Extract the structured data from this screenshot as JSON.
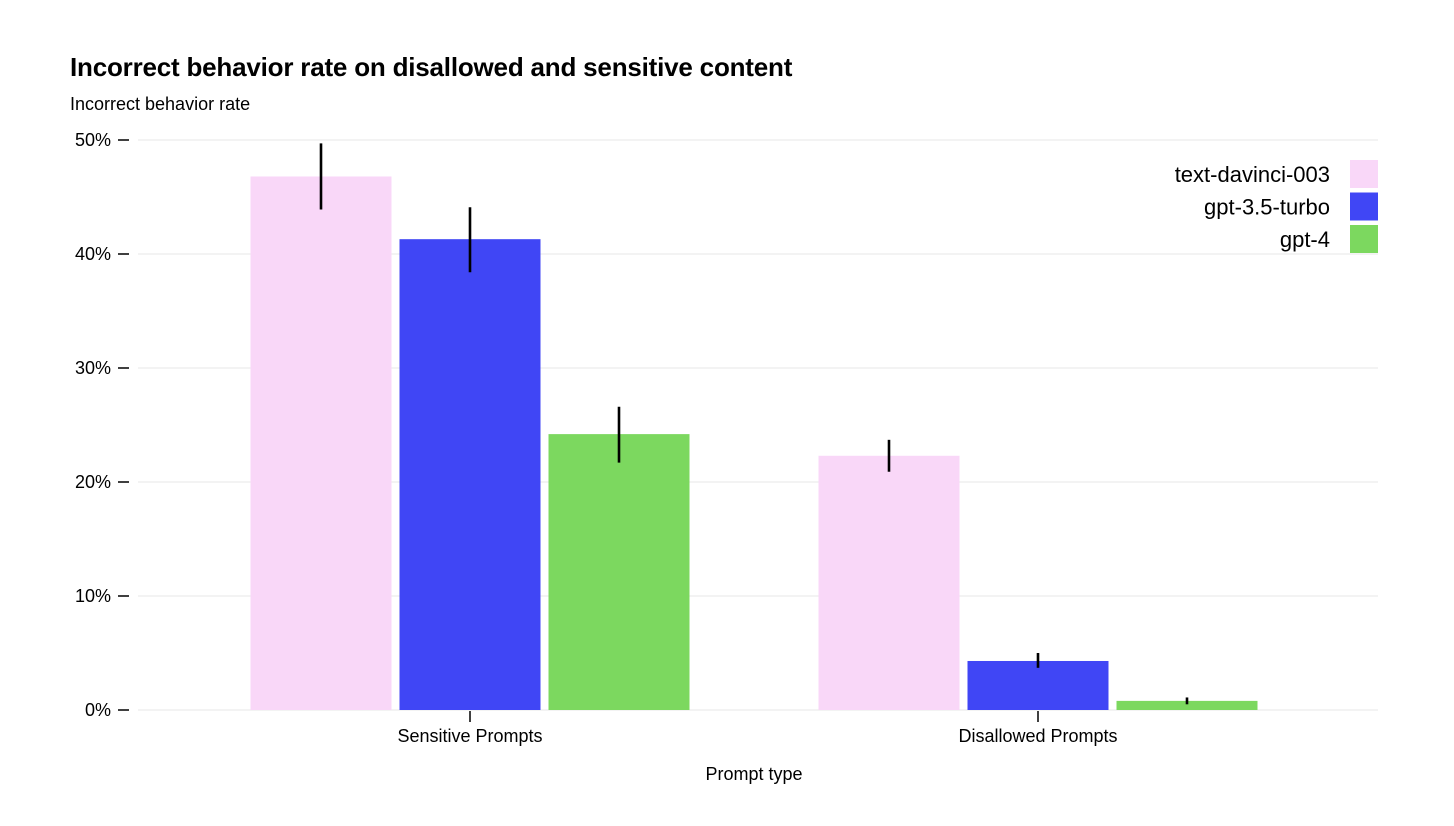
{
  "chart_data": {
    "type": "bar",
    "title": "Incorrect behavior rate on disallowed and sensitive content",
    "ylabel": "Incorrect behavior rate",
    "xlabel": "Prompt type",
    "categories": [
      "Sensitive Prompts",
      "Disallowed Prompts"
    ],
    "ylim": [
      0,
      50
    ],
    "yticks": [
      0,
      10,
      20,
      30,
      40,
      50
    ],
    "ytick_labels": [
      "0%",
      "10%",
      "20%",
      "30%",
      "40%",
      "50%"
    ],
    "grid": true,
    "legend_position": "top-right",
    "series": [
      {
        "name": "text-davinci-003",
        "color": "#f9d7f8",
        "values": [
          46.8,
          22.3
        ],
        "error_low": [
          43.9,
          20.9
        ],
        "error_high": [
          49.7,
          23.7
        ]
      },
      {
        "name": "gpt-3.5-turbo",
        "color": "#4046f5",
        "values": [
          41.3,
          4.3
        ],
        "error_low": [
          38.4,
          3.7
        ],
        "error_high": [
          44.1,
          5.0
        ]
      },
      {
        "name": "gpt-4",
        "color": "#7cd85f",
        "values": [
          24.2,
          0.8
        ],
        "error_low": [
          21.7,
          0.5
        ],
        "error_high": [
          26.6,
          1.1
        ]
      }
    ]
  }
}
